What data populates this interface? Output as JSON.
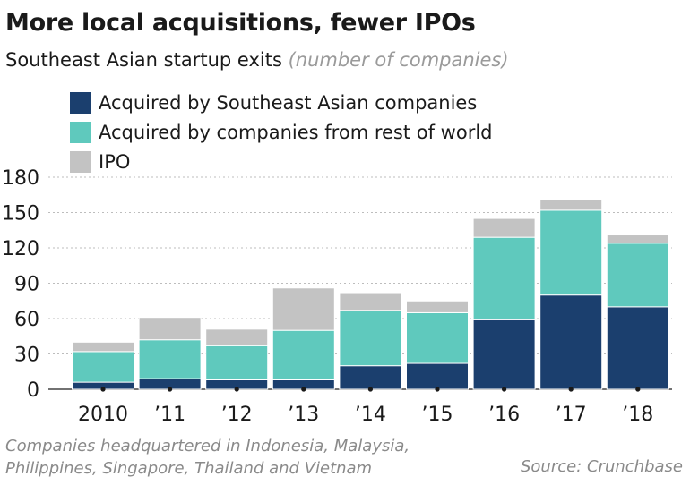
{
  "chart_data": {
    "type": "bar",
    "stacked": true,
    "title": "More local acquisitions, fewer IPOs",
    "subtitle": "Southeast Asian startup exits",
    "subtitle_unit": "(number of companies)",
    "categories": [
      "2010",
      "’11",
      "’12",
      "’13",
      "’14",
      "’15",
      "’16",
      "’17",
      "’18"
    ],
    "series": [
      {
        "name": "Acquired by Southeast Asian companies",
        "color": "#1b3f6e",
        "values": [
          6,
          9,
          8,
          8,
          20,
          22,
          59,
          80,
          70
        ]
      },
      {
        "name": "Acquired by companies from rest of world",
        "color": "#5fc9bd",
        "values": [
          26,
          33,
          29,
          42,
          47,
          43,
          70,
          72,
          54
        ]
      },
      {
        "name": "IPO",
        "color": "#c3c3c3",
        "values": [
          8,
          19,
          14,
          36,
          15,
          10,
          16,
          9,
          7
        ]
      }
    ],
    "yticks": [
      0,
      30,
      60,
      90,
      120,
      150,
      180
    ],
    "ylim": [
      0,
      180
    ],
    "xlabel": "",
    "ylabel": "",
    "grid": true,
    "legend_position": "top-left"
  },
  "footer": {
    "note_line1": "Companies headquartered in Indonesia, Malaysia,",
    "note_line2": "Philippines, Singapore, Thailand and Vietnam",
    "source": "Source: Crunchbase"
  }
}
